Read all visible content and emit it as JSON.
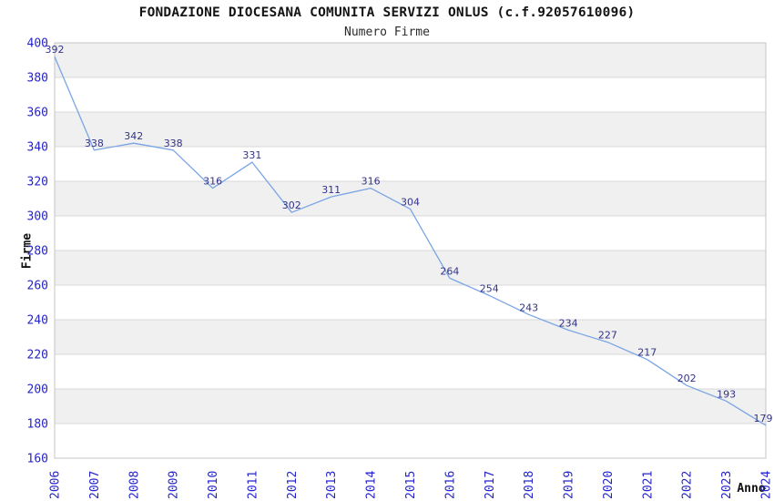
{
  "header": {
    "title": "FONDAZIONE DIOCESANA COMUNITA SERVIZI ONLUS (c.f.92057610096)",
    "subtitle": "Numero Firme"
  },
  "colors": {
    "series_line": "#7aa5e4",
    "band_fill": "#f0f0f0",
    "grid_line": "#d9d9d9",
    "plot_border": "#c4c4c4",
    "tick_label": "#2424cc",
    "value_label": "#333388",
    "title_text": "#141414"
  },
  "chart_data": {
    "type": "line",
    "title": "FONDAZIONE DIOCESANA COMUNITA SERVIZI ONLUS (c.f.92057610096)",
    "subtitle": "Numero Firme",
    "xlabel": "Anno",
    "ylabel": "Firme",
    "categories": [
      "2006",
      "2007",
      "2008",
      "2009",
      "2010",
      "2011",
      "2012",
      "2013",
      "2014",
      "2015",
      "2016",
      "2017",
      "2018",
      "2019",
      "2020",
      "2021",
      "2022",
      "2023",
      "2024"
    ],
    "series": [
      {
        "name": "Numero Firme",
        "values": [
          392,
          338,
          342,
          338,
          316,
          331,
          302,
          311,
          316,
          304,
          264,
          254,
          243,
          234,
          227,
          217,
          202,
          193,
          179
        ]
      }
    ],
    "ylim": [
      160,
      400
    ],
    "ytick_step": 20,
    "grid": "horizontal-alternating-bands",
    "legend_position": "none",
    "data_labels_visible": true,
    "x_tick_rotation_deg": 90
  }
}
